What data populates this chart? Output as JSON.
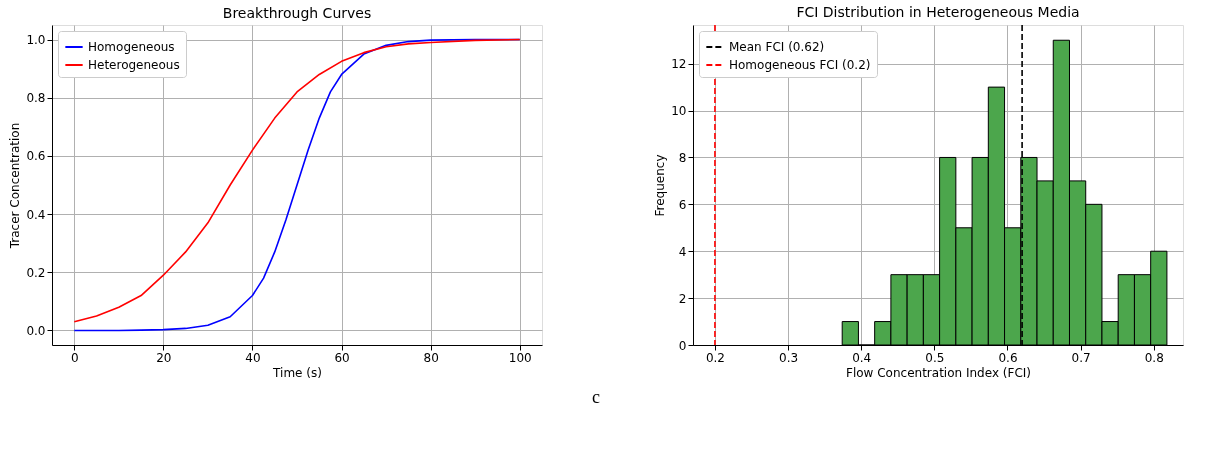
{
  "chart_data": [
    {
      "type": "line",
      "title": "Breakthrough Curves",
      "xlabel": "Time (s)",
      "ylabel": "Tracer Concentration",
      "xlim": [
        -5,
        105
      ],
      "xticks": [
        0,
        20,
        40,
        60,
        80,
        100
      ],
      "ylim": [
        -0.05,
        1.05
      ],
      "yticks": [
        {
          "value": 0,
          "label": "0.0"
        },
        0.2,
        0.4,
        0.6,
        0.8,
        {
          "value": 1,
          "label": "1.0"
        }
      ],
      "grid": true,
      "legend": "top left",
      "line_style": "solid",
      "marker": "none",
      "series": [
        {
          "name": "Homogeneous",
          "color": "#0000ff",
          "x": [
            0,
            5,
            10,
            15,
            20,
            25,
            30,
            35,
            40,
            42.5,
            45,
            47.5,
            50,
            52.5,
            55,
            57.5,
            60,
            65,
            70,
            75,
            80,
            90,
            100
          ],
          "values": [
            0.0,
            0.0,
            0.0,
            0.001,
            0.003,
            0.007,
            0.018,
            0.047,
            0.12,
            0.18,
            0.27,
            0.38,
            0.5,
            0.62,
            0.73,
            0.82,
            0.88,
            0.95,
            0.98,
            0.993,
            0.998,
            1.0,
            1.0
          ]
        },
        {
          "name": "Heterogeneous",
          "color": "#ff0000",
          "x": [
            0,
            5,
            10,
            15,
            20,
            25,
            30,
            35,
            40,
            45,
            50,
            55,
            60,
            65,
            70,
            75,
            80,
            90,
            100
          ],
          "values": [
            0.03,
            0.05,
            0.08,
            0.12,
            0.19,
            0.27,
            0.37,
            0.5,
            0.62,
            0.73,
            0.82,
            0.88,
            0.925,
            0.955,
            0.975,
            0.985,
            0.99,
            0.997,
            1.0
          ]
        }
      ],
      "annotations": [
        "c"
      ]
    },
    {
      "type": "histogram",
      "title": "FCI Distribution in Heterogeneous Media",
      "xlabel": "Flow Concentration Index (FCI)",
      "ylabel": "Frequency",
      "xlim": [
        0.17,
        0.84
      ],
      "xticks": [
        0.2,
        0.3,
        0.4,
        0.5,
        0.6,
        0.7,
        0.8
      ],
      "ylim": [
        0,
        13.65
      ],
      "yticks": [
        0,
        2,
        4,
        6,
        8,
        10,
        12
      ],
      "grid": true,
      "legend": "top left",
      "color": "#4ca64c",
      "bins": [
        0.374,
        0.3962,
        0.4184,
        0.4406,
        0.4628,
        0.485,
        0.5072,
        0.5294,
        0.5516,
        0.5738,
        0.596,
        0.6182,
        0.6404,
        0.6626,
        0.6848,
        0.707,
        0.7292,
        0.7514,
        0.7736,
        0.7958,
        0.818
      ],
      "values": [
        1,
        0,
        1,
        3,
        3,
        3,
        8,
        5,
        8,
        11,
        5,
        8,
        7,
        13,
        7,
        6,
        1,
        3,
        3,
        4
      ],
      "ref_lines": [
        {
          "axis": "x",
          "value": 0.62,
          "label": "Mean FCI (0.62)",
          "color": "#000000",
          "line_style": "dashed"
        },
        {
          "axis": "x",
          "value": 0.2,
          "label": "Homogeneous FCI (0.2)",
          "color": "#ff0000",
          "line_style": "dashed"
        }
      ]
    }
  ]
}
